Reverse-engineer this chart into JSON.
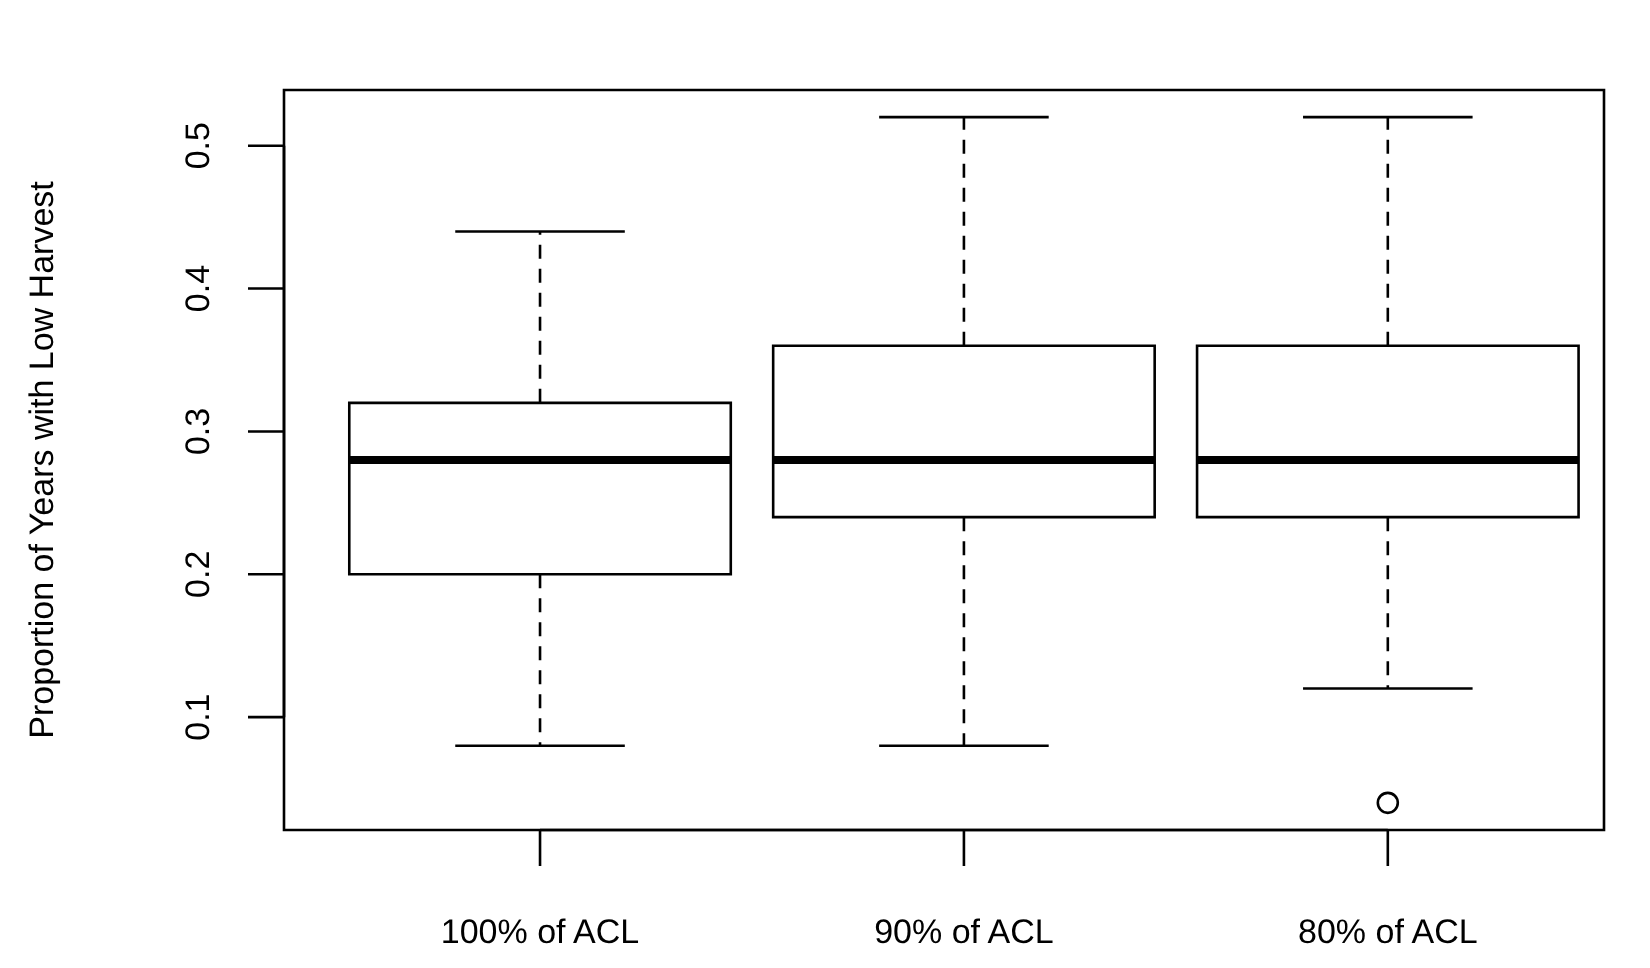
{
  "chart_data": {
    "type": "box",
    "ylabel": "Proportion of Years with Low Harvest",
    "categories": [
      "100% of ACL",
      "90% of ACL",
      "80% of ACL"
    ],
    "boxes": [
      {
        "low": 0.08,
        "q1": 0.2,
        "median": 0.28,
        "q3": 0.32,
        "high": 0.44
      },
      {
        "low": 0.08,
        "q1": 0.24,
        "median": 0.28,
        "q3": 0.36,
        "high": 0.52
      },
      {
        "low": 0.12,
        "q1": 0.24,
        "median": 0.28,
        "q3": 0.36,
        "high": 0.52,
        "outliers": [
          0.04
        ]
      }
    ],
    "ylim": [
      0.021,
      0.539
    ],
    "yticks": [
      0.1,
      0.2,
      0.3,
      0.4,
      0.5
    ]
  }
}
